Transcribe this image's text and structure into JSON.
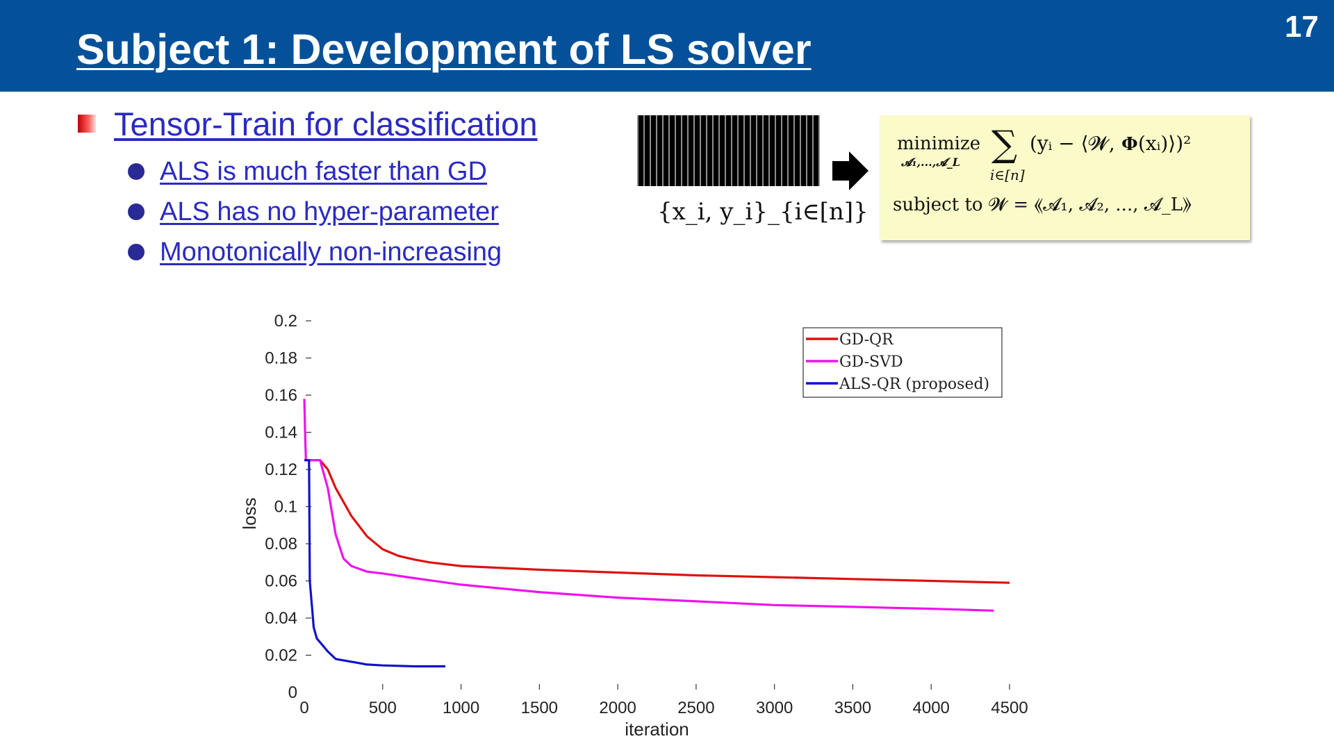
{
  "slide": {
    "title": "Subject 1: Development of LS solver",
    "page_number": "17"
  },
  "content": {
    "main_bullet": "Tensor-Train for classification",
    "sub_bullets": [
      "ALS is much faster than GD",
      "ALS has no hyper-parameter",
      "Monotonically non-increasing"
    ],
    "dataset_label": "{x_i, y_i}_{i∈[n]}",
    "formula": {
      "objective_word": "minimize",
      "objective_sub": "𝓐₁,...,𝓐_L",
      "sum_sub": "i∈[n]",
      "objective_body": "(yᵢ − ⟨𝓦, 𝚽(xᵢ)⟩)²",
      "constraint": "subject to  𝓦 = ⟪𝓐₁, 𝓐₂, ..., 𝓐_L⟫"
    }
  },
  "colors": {
    "header": "#04519a",
    "link": "#2a2ac4",
    "gd_qr": "#dd1111",
    "gd_svd": "#ee11ee",
    "als_qr": "#1111cc",
    "formula_bg": "#fbfbc9"
  },
  "chart_data": {
    "type": "line",
    "xlabel": "iteration",
    "ylabel": "loss",
    "xlim": [
      0,
      4500
    ],
    "ylim": [
      0,
      0.2
    ],
    "xticks": [
      0,
      500,
      1000,
      1500,
      2000,
      2500,
      3000,
      3500,
      4000,
      4500
    ],
    "yticks": [
      0,
      0.02,
      0.04,
      0.06,
      0.08,
      0.1,
      0.12,
      0.14,
      0.16,
      0.18,
      0.2
    ],
    "ytick_labels": [
      "0",
      "0.02",
      "0.04",
      "0.06",
      "0.08",
      "0.1",
      "0.12",
      "0.14",
      "0.16",
      "0.18",
      "0.2"
    ],
    "legend_position": "top-right",
    "series": [
      {
        "name": "GD-QR",
        "color": "#dd1111",
        "x": [
          0,
          50,
          100,
          150,
          200,
          300,
          400,
          500,
          600,
          700,
          800,
          1000,
          1500,
          2000,
          2500,
          3000,
          3500,
          4000,
          4500
        ],
        "y": [
          0.125,
          0.125,
          0.125,
          0.12,
          0.11,
          0.095,
          0.084,
          0.077,
          0.0735,
          0.0715,
          0.07,
          0.068,
          0.066,
          0.0645,
          0.063,
          0.062,
          0.061,
          0.06,
          0.059
        ]
      },
      {
        "name": "GD-SVD",
        "color": "#ee11ee",
        "x": [
          0,
          5,
          10,
          50,
          100,
          150,
          200,
          250,
          300,
          400,
          500,
          700,
          1000,
          1500,
          2000,
          2500,
          3000,
          3500,
          4000,
          4400
        ],
        "y": [
          0.158,
          0.14,
          0.125,
          0.125,
          0.125,
          0.11,
          0.085,
          0.072,
          0.068,
          0.065,
          0.064,
          0.0615,
          0.058,
          0.054,
          0.051,
          0.049,
          0.047,
          0.046,
          0.045,
          0.044
        ]
      },
      {
        "name": "ALS-QR (proposed)",
        "color": "#1111cc",
        "x": [
          0,
          30,
          35,
          40,
          50,
          60,
          80,
          100,
          150,
          200,
          300,
          400,
          500,
          700,
          900
        ],
        "y": [
          0.125,
          0.125,
          0.06,
          0.055,
          0.045,
          0.035,
          0.029,
          0.027,
          0.022,
          0.018,
          0.0165,
          0.015,
          0.0145,
          0.014,
          0.014
        ]
      }
    ]
  }
}
